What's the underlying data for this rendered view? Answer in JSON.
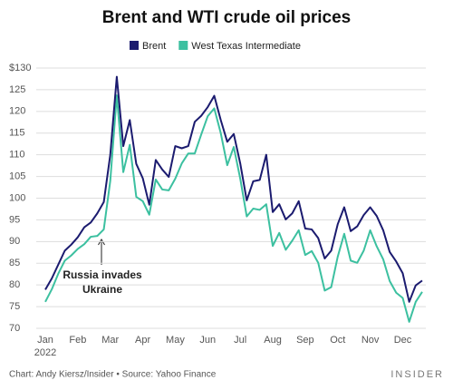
{
  "chart_data": {
    "type": "line",
    "title": "Brent and WTI crude oil prices",
    "categories": [
      "Jan",
      null,
      null,
      null,
      null,
      "Feb",
      null,
      null,
      null,
      null,
      "Mar",
      null,
      null,
      null,
      null,
      "Apr",
      null,
      null,
      null,
      null,
      "May",
      null,
      null,
      null,
      null,
      "Jun",
      null,
      null,
      null,
      null,
      "Jul",
      null,
      null,
      null,
      null,
      "Aug",
      null,
      null,
      null,
      null,
      "Sep",
      null,
      null,
      null,
      null,
      "Oct",
      null,
      null,
      null,
      null,
      "Nov",
      null,
      null,
      null,
      null,
      "Dec",
      null,
      null,
      null
    ],
    "x_year": "2022",
    "series": [
      {
        "name": "Brent",
        "color": "#1b1b6f",
        "values": [
          78.9,
          81.5,
          84.7,
          87.9,
          89.3,
          91,
          93.3,
          94.4,
          96.5,
          99.1,
          110,
          127.98,
          112,
          118,
          107.9,
          104.6,
          98.5,
          108.8,
          106.6,
          104.9,
          112,
          111.5,
          112,
          117.6,
          119,
          121,
          123.6,
          118,
          113,
          114.8,
          108,
          99.5,
          103.9,
          104.2,
          110,
          96.8,
          98.6,
          95.1,
          96.5,
          99.3,
          93,
          92.8,
          90.8,
          86.1,
          87.9,
          94,
          97.9,
          92.4,
          93.5,
          96.1,
          97.9,
          95.9,
          92.6,
          87.6,
          85.4,
          82.7,
          76.1,
          79.9,
          81
        ]
      },
      {
        "name": "West Texas Intermediate",
        "color": "#3cc0a0",
        "values": [
          76.1,
          79,
          82.6,
          85.6,
          86.8,
          88.3,
          89.4,
          91.1,
          91.3,
          92.8,
          104,
          123.7,
          106,
          112.3,
          100.3,
          99.3,
          96.2,
          104.3,
          102,
          101.8,
          104.5,
          108,
          110.3,
          110.3,
          114.7,
          118.9,
          120.7,
          115,
          107.6,
          111.8,
          104.5,
          95.8,
          97.6,
          97.3,
          98.6,
          89,
          92,
          88.1,
          90.2,
          92.6,
          86.9,
          87.8,
          85.1,
          78.7,
          79.5,
          86.5,
          91.8,
          85.6,
          85.1,
          87.9,
          92.6,
          88.9,
          85.9,
          80.9,
          78.2,
          77,
          71.5,
          76.1,
          78.4
        ]
      }
    ],
    "ylim": [
      70,
      130
    ],
    "yticks": [
      70,
      75,
      80,
      85,
      90,
      95,
      100,
      105,
      110,
      115,
      120,
      125,
      {
        "value": 130,
        "label": "$130"
      }
    ],
    "grid": true,
    "annotation": [
      "Russia invades",
      "Ukraine"
    ],
    "credit": "Chart: Andy Kiersz/Insider • Source: Yahoo Finance",
    "brand": "INSIDER"
  }
}
